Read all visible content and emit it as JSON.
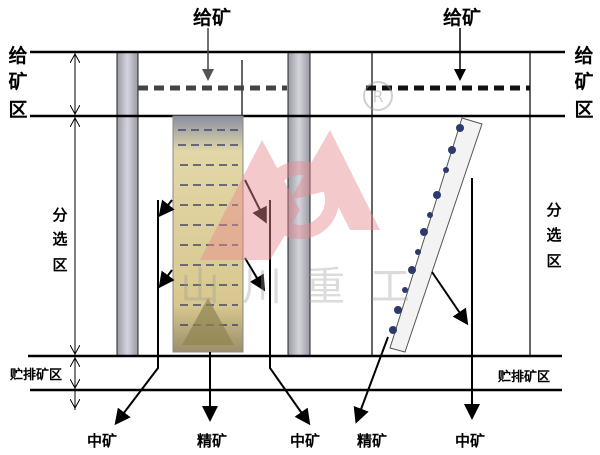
{
  "labels": {
    "feed_top_left": "给矿",
    "feed_top_right": "给矿",
    "feed_zone_left": [
      "给",
      "矿",
      "区"
    ],
    "feed_zone_right": [
      "给",
      "矿",
      "区"
    ],
    "separation_zone_left": [
      "分",
      "选",
      "区"
    ],
    "separation_zone_right": [
      "分",
      "选",
      "区"
    ],
    "storage_zone_left": "贮排矿区",
    "storage_zone_right": "贮排矿区",
    "outputs": [
      "中矿",
      "精矿",
      "中矿",
      "精矿",
      "中矿"
    ]
  },
  "watermark": {
    "text": [
      "山",
      "川",
      "重",
      "工"
    ],
    "registered": "R",
    "color": "#e8888e"
  }
}
